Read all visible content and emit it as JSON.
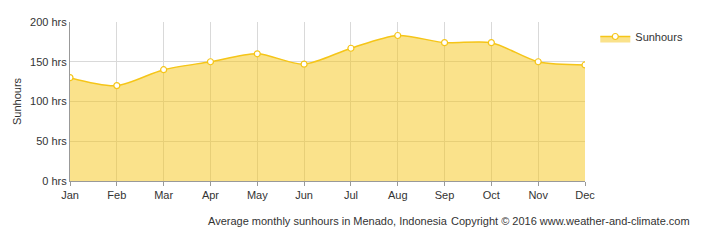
{
  "chart_data": {
    "type": "area",
    "y_label": "Sunhours",
    "categories": [
      "Jan",
      "Feb",
      "Mar",
      "Apr",
      "May",
      "Jun",
      "Jul",
      "Aug",
      "Sep",
      "Oct",
      "Nov",
      "Dec"
    ],
    "series": [
      {
        "name": "Sunhours",
        "color": "#f5c518",
        "marker": "circle",
        "values": [
          130,
          120,
          140,
          150,
          160,
          147,
          167,
          183,
          174,
          174,
          150,
          146
        ]
      }
    ],
    "ylim": [
      0,
      200
    ],
    "yticks": [
      {
        "value": 0,
        "label": "0 hrs"
      },
      {
        "value": 50,
        "label": "50 hrs"
      },
      {
        "value": 100,
        "label": "100 hrs"
      },
      {
        "value": 150,
        "label": "150 hrs"
      },
      {
        "value": 200,
        "label": "200 hrs"
      }
    ],
    "grid": true,
    "legend": "top right",
    "annotations": [
      "Average monthly sunhours in Menado, Indonesia",
      "Copyright © 2016 www.weather-and-climate.com"
    ]
  }
}
